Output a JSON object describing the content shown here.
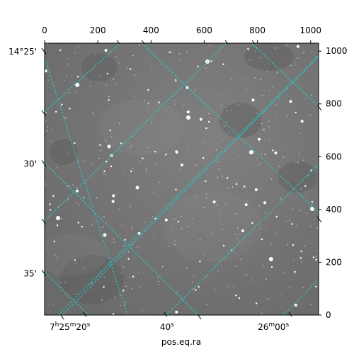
{
  "chart_data": {
    "type": "image",
    "xlabel": "pos.eq.ra",
    "pixel_axes": {
      "x_ticks": [
        0,
        200,
        400,
        600,
        800,
        1000
      ],
      "y_ticks": [
        0,
        200,
        400,
        600,
        800,
        1000
      ],
      "xlim": [
        0,
        1030
      ],
      "ylim": [
        0,
        1030
      ]
    },
    "wcs_axes": {
      "ra_ticks": [
        {
          "label_main": "7",
          "h": "h",
          "m_val": "25",
          "m": "m",
          "s_val": "20",
          "s": "s",
          "px": 55
        },
        {
          "label_main": "40",
          "s": "s",
          "px": 460
        },
        {
          "label_main": "26",
          "m": "m",
          "s_val": "00",
          "s2": "s",
          "px": 860
        }
      ],
      "dec_ticks": [
        {
          "label": "14°25'",
          "py": 1000
        },
        {
          "label": "30'",
          "py": 575
        },
        {
          "label": "35'",
          "py": 160
        }
      ]
    },
    "grid": {
      "color": "#1fd0d0",
      "style": "dashed"
    },
    "image_background": "#7a7a7a"
  }
}
